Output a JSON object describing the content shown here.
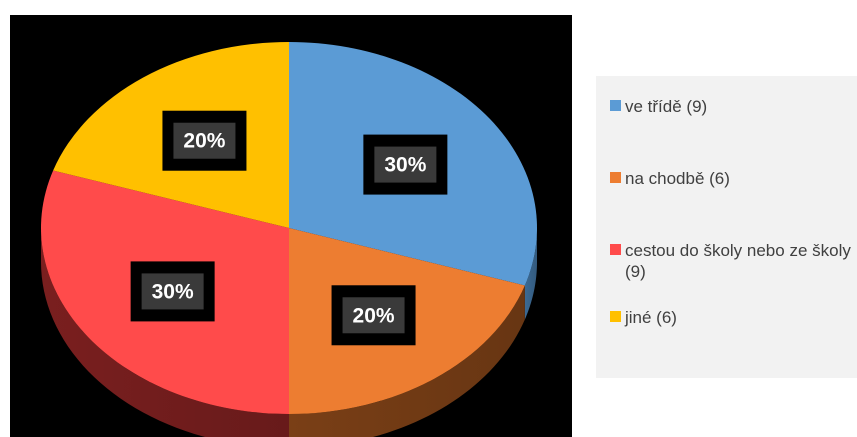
{
  "chart_data": {
    "type": "pie",
    "style": "3d",
    "categories": [
      "ve třídě (9)",
      "na chodbě (6)",
      "cestou do školy nebo ze školy (9)",
      "jiné (6)"
    ],
    "values": [
      9,
      6,
      9,
      6
    ],
    "percent_labels": [
      "30%",
      "20%",
      "30%",
      "20%"
    ],
    "colors": [
      "#5b9bd5",
      "#ed7d31",
      "#ff4b4b",
      "#ffc000"
    ],
    "side_colors": [
      "#3c6a94",
      "#7a3f16",
      "#7a1f1f",
      "#8a6800"
    ],
    "legend_position": "right",
    "title": ""
  },
  "legend": {
    "items": [
      {
        "label": "ve třídě (9)",
        "color": "#5b9bd5"
      },
      {
        "label": "na chodbě (6)",
        "color": "#ed7d31"
      },
      {
        "label": "cestou do školy nebo ze školy (9)",
        "color": "#ff4b4b"
      },
      {
        "label": "jiné (6)",
        "color": "#ffc000"
      }
    ]
  }
}
